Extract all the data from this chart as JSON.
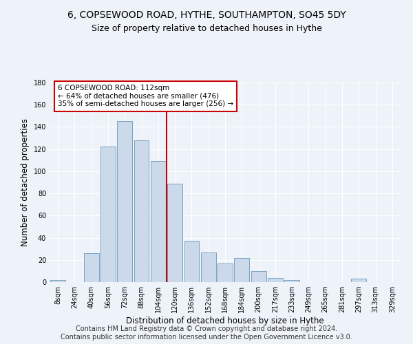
{
  "title": "6, COPSEWOOD ROAD, HYTHE, SOUTHAMPTON, SO45 5DY",
  "subtitle": "Size of property relative to detached houses in Hythe",
  "xlabel": "Distribution of detached houses by size in Hythe",
  "ylabel": "Number of detached properties",
  "bin_labels": [
    "8sqm",
    "24sqm",
    "40sqm",
    "56sqm",
    "72sqm",
    "88sqm",
    "104sqm",
    "120sqm",
    "136sqm",
    "152sqm",
    "168sqm",
    "184sqm",
    "200sqm",
    "217sqm",
    "233sqm",
    "249sqm",
    "265sqm",
    "281sqm",
    "297sqm",
    "313sqm",
    "329sqm"
  ],
  "bar_heights": [
    2,
    0,
    26,
    122,
    145,
    128,
    109,
    89,
    37,
    27,
    17,
    22,
    10,
    4,
    2,
    0,
    0,
    0,
    3,
    0,
    0
  ],
  "bar_color": "#ccd9ea",
  "bar_edge_color": "#6699bb",
  "vline_x_index": 7,
  "vline_color": "#cc0000",
  "annotation_text": "6 COPSEWOOD ROAD: 112sqm\n← 64% of detached houses are smaller (476)\n35% of semi-detached houses are larger (256) →",
  "annotation_box_color": "#ffffff",
  "annotation_box_edge_color": "#cc0000",
  "ylim": [
    0,
    180
  ],
  "yticks": [
    0,
    20,
    40,
    60,
    80,
    100,
    120,
    140,
    160,
    180
  ],
  "footer": "Contains HM Land Registry data © Crown copyright and database right 2024.\nContains public sector information licensed under the Open Government Licence v3.0.",
  "bg_color": "#eef2f9",
  "plot_bg_color": "#eef2f9",
  "grid_color": "#ffffff",
  "title_fontsize": 10,
  "subtitle_fontsize": 9,
  "axis_label_fontsize": 8.5,
  "tick_fontsize": 7,
  "annot_fontsize": 7.5,
  "footer_fontsize": 7
}
